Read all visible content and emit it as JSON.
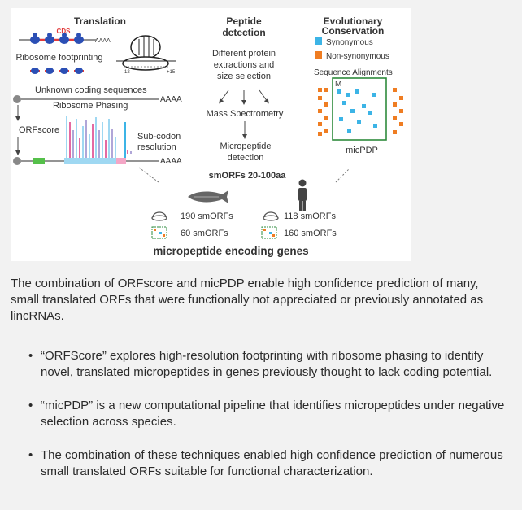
{
  "figure": {
    "translation": {
      "heading": "Translation",
      "cds_label": "CDS",
      "polyA_1": "AAAA",
      "footprinting_label": "Ribosome footprinting",
      "pos_neg": "-12",
      "pos_pos": "+15"
    },
    "orf": {
      "unknown_label": "Unknown coding sequences",
      "polyA_2": "AAAA",
      "phasing_label": "Ribosome Phasing",
      "orfscore_label": "ORFscore",
      "subcodon_label_1": "Sub-codon",
      "subcodon_label_2": "resolution",
      "polyA_3": "AAAA"
    },
    "peptide": {
      "heading_1": "Peptide",
      "heading_2": "detection",
      "extraction_1": "Different protein",
      "extraction_2": "extractions and",
      "extraction_3": "size selection",
      "mass_spec": "Mass Spectrometry",
      "micropeptide_1": "Micropeptide",
      "micropeptide_2": "detection"
    },
    "conservation": {
      "heading_1": "Evolutionary",
      "heading_2": "Conservation",
      "legend_syn": "Synonymous",
      "legend_nonsyn": "Non-synonymous",
      "alignments_label": "Sequence Alignments",
      "matrix_letter": "M",
      "pipeline_label": "micPDP",
      "color_syn": "#3cb4e6",
      "color_nonsyn": "#ef7d22",
      "color_box": "#2e8b3c"
    },
    "smorfs": {
      "range_label": "smORFs 20-100aa",
      "fish_ribo": "190 smORFs",
      "fish_pdp": "60 smORFs",
      "human_ribo": "118 smORFs",
      "human_pdp": "160 smORFs",
      "footer": "micropeptide encoding genes"
    },
    "icons": [
      "ribosome-icon",
      "zebrafish-icon",
      "human-icon",
      "micpdp-icon"
    ]
  },
  "caption": "The combination of ORFscore and micPDP enable high confidence prediction of many, small translated ORFs that were functionally not appreciated or previously annotated as lincRNAs.",
  "bullets": [
    "“ORFScore” explores high-resolution footprinting with ribosome phasing to identify novel, translated micropeptides in genes previously thought to lack coding potential.",
    "“micPDP” is a new computational pipeline that identifies micropeptides under negative selection across species.",
    "The combination of these techniques enabled high confidence prediction of numerous small translated ORFs suitable for functional characterization."
  ],
  "bullet_symbol": "•"
}
